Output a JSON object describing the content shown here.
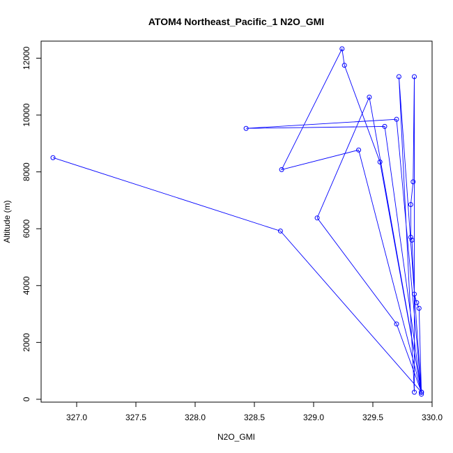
{
  "chart_data": {
    "type": "line",
    "title": "ATOM4 Northeast_Pacific_1 N2O_GMI",
    "xlabel": "N2O_GMI",
    "ylabel": "Altitude (m)",
    "xlim": [
      326.7,
      330.0
    ],
    "ylim": [
      -100,
      12600
    ],
    "xticks": [
      327.0,
      327.5,
      328.0,
      328.5,
      329.0,
      329.5,
      330.0
    ],
    "xtick_labels": [
      "327.0",
      "327.5",
      "328.0",
      "328.5",
      "329.0",
      "329.5",
      "330.0"
    ],
    "yticks": [
      0,
      2000,
      4000,
      6000,
      8000,
      10000,
      12000
    ],
    "ytick_labels": [
      "0",
      "2000",
      "4000",
      "6000",
      "8000",
      "10000",
      "12000"
    ],
    "grid": false,
    "series": [
      {
        "color": "#0000ff",
        "marker": "open-circle",
        "x": [
          329.91,
          329.89,
          329.87,
          329.85,
          329.83,
          329.82,
          329.82,
          329.84,
          329.85,
          329.85,
          329.72,
          329.91,
          329.56,
          329.26,
          329.24,
          328.73,
          329.38,
          329.91,
          329.6,
          328.43,
          329.7,
          329.91,
          329.47,
          329.03,
          329.7,
          329.91,
          328.72,
          326.8
        ],
        "y": [
          180,
          3200,
          3400,
          3700,
          5600,
          5700,
          6850,
          7650,
          11350,
          250,
          11350,
          250,
          8350,
          11750,
          12330,
          8080,
          8770,
          250,
          9600,
          9530,
          9850,
          250,
          10630,
          6380,
          2650,
          250,
          5920,
          8500
        ]
      }
    ]
  }
}
